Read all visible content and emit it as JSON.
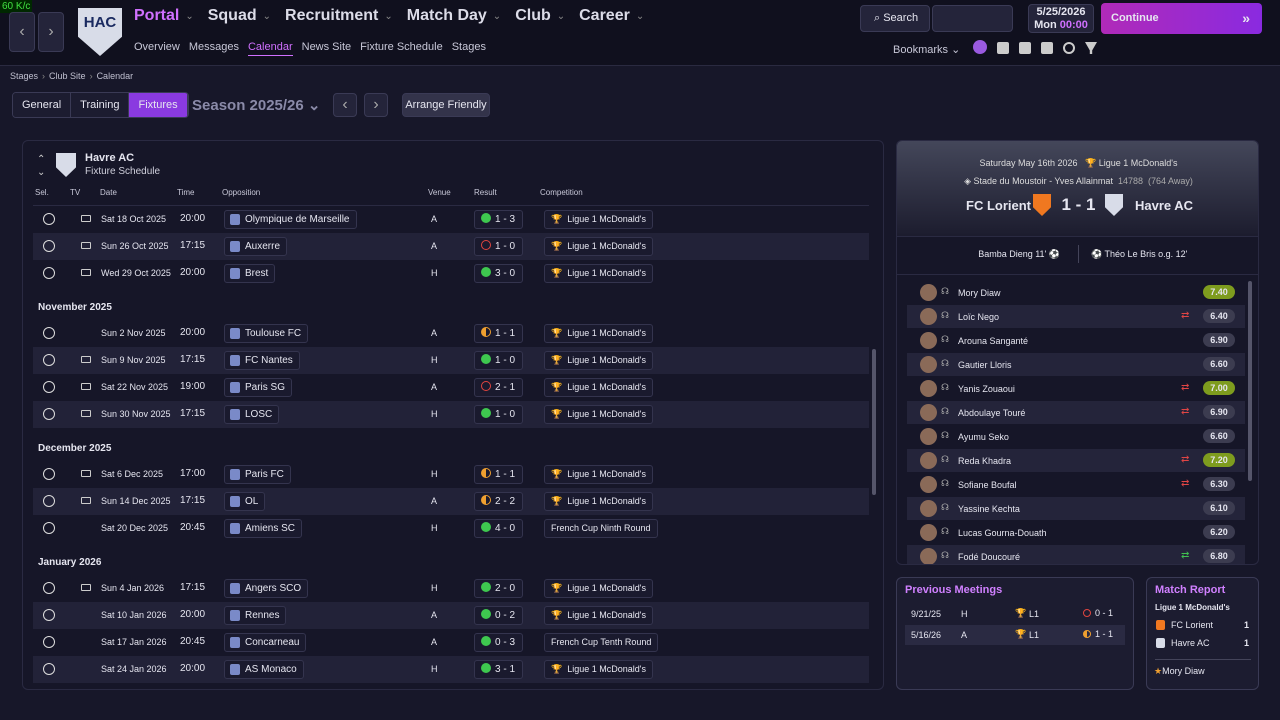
{
  "top": {
    "fps": "60 K/c",
    "logo": "HAC",
    "nav": [
      "Portal",
      "Squad",
      "Recruitment",
      "Match Day",
      "Club",
      "Career"
    ],
    "subnav": [
      "Overview",
      "Messages",
      "Calendar",
      "News Site",
      "Fixture Schedule",
      "Stages"
    ],
    "active_subnav": 2,
    "search": "Search",
    "date": "5/25/2026",
    "day": "Mon",
    "time": "00:00",
    "continue": "Continue",
    "bookmarks": "Bookmarks"
  },
  "breadcrumb": [
    "Stages",
    "Club Site",
    "Calendar"
  ],
  "tabs": [
    "General",
    "Training",
    "Fixtures"
  ],
  "active_tab": 2,
  "season": "Season 2025/26",
  "arrange": "Arrange Friendly",
  "schedule": {
    "club": "Havre AC",
    "subtitle": "Fixture Schedule",
    "columns": [
      "Sel.",
      "TV",
      "Date",
      "Time",
      "Opposition",
      "Venue",
      "Result",
      "Competition"
    ],
    "groups": [
      {
        "fixtures": [
          {
            "tv": true,
            "date": "Sat 18 Oct 2025",
            "time": "20:00",
            "opponent": "Olympique de Marseille",
            "venue": "A",
            "result": "1 - 3",
            "outcome": "win",
            "competition": "Ligue 1 McDonald's"
          },
          {
            "tv": true,
            "date": "Sun 26 Oct 2025",
            "time": "17:15",
            "opponent": "Auxerre",
            "venue": "A",
            "result": "1 - 0",
            "outcome": "loss",
            "competition": "Ligue 1 McDonald's"
          },
          {
            "tv": true,
            "date": "Wed 29 Oct 2025",
            "time": "20:00",
            "opponent": "Brest",
            "venue": "H",
            "result": "3 - 0",
            "outcome": "win",
            "competition": "Ligue 1 McDonald's"
          }
        ]
      },
      {
        "month": "November 2025",
        "fixtures": [
          {
            "tv": false,
            "date": "Sun 2 Nov 2025",
            "time": "20:00",
            "opponent": "Toulouse FC",
            "venue": "A",
            "result": "1 - 1",
            "outcome": "draw",
            "competition": "Ligue 1 McDonald's"
          },
          {
            "tv": true,
            "date": "Sun 9 Nov 2025",
            "time": "17:15",
            "opponent": "FC Nantes",
            "venue": "H",
            "result": "1 - 0",
            "outcome": "win",
            "competition": "Ligue 1 McDonald's"
          },
          {
            "tv": true,
            "date": "Sat 22 Nov 2025",
            "time": "19:00",
            "opponent": "Paris SG",
            "venue": "A",
            "result": "2 - 1",
            "outcome": "loss",
            "competition": "Ligue 1 McDonald's"
          },
          {
            "tv": true,
            "date": "Sun 30 Nov 2025",
            "time": "17:15",
            "opponent": "LOSC",
            "venue": "H",
            "result": "1 - 0",
            "outcome": "win",
            "competition": "Ligue 1 McDonald's"
          }
        ]
      },
      {
        "month": "December 2025",
        "fixtures": [
          {
            "tv": true,
            "date": "Sat 6 Dec 2025",
            "time": "17:00",
            "opponent": "Paris FC",
            "venue": "H",
            "result": "1 - 1",
            "outcome": "draw",
            "competition": "Ligue 1 McDonald's"
          },
          {
            "tv": true,
            "date": "Sun 14 Dec 2025",
            "time": "17:15",
            "opponent": "OL",
            "venue": "A",
            "result": "2 - 2",
            "outcome": "draw",
            "competition": "Ligue 1 McDonald's"
          },
          {
            "tv": false,
            "date": "Sat 20 Dec 2025",
            "time": "20:45",
            "opponent": "Amiens SC",
            "venue": "H",
            "result": "4 - 0",
            "outcome": "win",
            "competition": "French Cup Ninth Round"
          }
        ]
      },
      {
        "month": "January 2026",
        "fixtures": [
          {
            "tv": true,
            "date": "Sun 4 Jan 2026",
            "time": "17:15",
            "opponent": "Angers SCO",
            "venue": "H",
            "result": "2 - 0",
            "outcome": "win",
            "competition": "Ligue 1 McDonald's"
          },
          {
            "tv": false,
            "date": "Sat 10 Jan 2026",
            "time": "20:00",
            "opponent": "Rennes",
            "venue": "A",
            "result": "0 - 2",
            "outcome": "win",
            "competition": "Ligue 1 McDonald's"
          },
          {
            "tv": false,
            "date": "Sat 17 Jan 2026",
            "time": "20:45",
            "opponent": "Concarneau",
            "venue": "A",
            "result": "0 - 3",
            "outcome": "win",
            "competition": "French Cup Tenth Round"
          },
          {
            "tv": false,
            "date": "Sat 24 Jan 2026",
            "time": "20:00",
            "opponent": "AS Monaco",
            "venue": "H",
            "result": "3 - 1",
            "outcome": "win",
            "competition": "Ligue 1 McDonald's"
          }
        ]
      }
    ]
  },
  "match": {
    "date": "Saturday May 16th 2026",
    "competition": "Ligue 1 McDonald's",
    "stadium": "Stade du Moustoir - Yves Allainmat",
    "attendance": "14788",
    "away_fans": "(764 Away)",
    "home": "FC Lorient",
    "score": "1 - 1",
    "away": "Havre AC",
    "home_scorer": "Bamba Dieng 11'",
    "away_scorer": "Théo Le Bris o.g. 12'",
    "players": [
      {
        "name": "Mory Diaw",
        "rating": "7.40",
        "highlight": true
      },
      {
        "name": "Loïc Nego",
        "rating": "6.40",
        "sub": "off"
      },
      {
        "name": "Arouna Sanganté",
        "rating": "6.90"
      },
      {
        "name": "Gautier Lloris",
        "rating": "6.60"
      },
      {
        "name": "Yanis Zouaoui",
        "rating": "7.00",
        "sub": "off",
        "highlight": true
      },
      {
        "name": "Abdoulaye Touré",
        "rating": "6.90",
        "sub": "off"
      },
      {
        "name": "Ayumu Seko",
        "rating": "6.60"
      },
      {
        "name": "Reda Khadra",
        "rating": "7.20",
        "sub": "off",
        "highlight": true
      },
      {
        "name": "Sofiane Boufal",
        "rating": "6.30",
        "sub": "off"
      },
      {
        "name": "Yassine Kechta",
        "rating": "6.10"
      },
      {
        "name": "Lucas Gourna-Douath",
        "rating": "6.20"
      },
      {
        "name": "Fodé Doucouré",
        "rating": "6.80",
        "sub": "on"
      }
    ]
  },
  "previous": {
    "title": "Previous Meetings",
    "rows": [
      {
        "date": "9/21/25",
        "venue": "H",
        "competition": "L1",
        "result": "0 - 1",
        "outcome": "loss"
      },
      {
        "date": "5/16/26",
        "venue": "A",
        "competition": "L1",
        "result": "1 - 1",
        "outcome": "draw"
      }
    ]
  },
  "report": {
    "title": "Match Report",
    "competition": "Ligue 1 McDonald's",
    "teams": [
      {
        "name": "FC Lorient",
        "goals": "1"
      },
      {
        "name": "Havre AC",
        "goals": "1"
      }
    ],
    "player_of_match": "Mory Diaw"
  }
}
